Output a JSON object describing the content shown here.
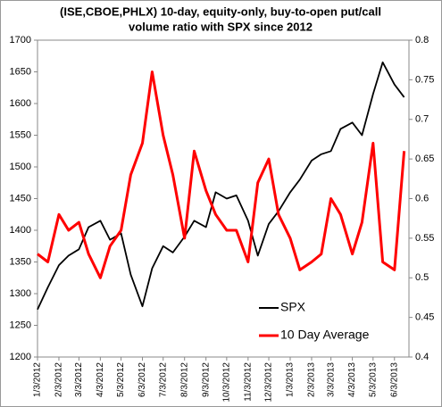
{
  "chart_data": {
    "type": "line",
    "title": [
      "(ISE,CBOE,PHLX) 10-day, equity-only, buy-to-open put/call",
      "volume ratio with SPX since 2012"
    ],
    "x": [
      "2012-01-03",
      "2012-01-18",
      "2012-02-03",
      "2012-02-17",
      "2012-03-03",
      "2012-03-17",
      "2012-04-03",
      "2012-04-17",
      "2012-05-03",
      "2012-05-17",
      "2012-06-03",
      "2012-06-17",
      "2012-07-03",
      "2012-07-17",
      "2012-08-03",
      "2012-08-17",
      "2012-09-03",
      "2012-09-17",
      "2012-10-03",
      "2012-10-17",
      "2012-11-03",
      "2012-11-17",
      "2012-12-03",
      "2012-12-17",
      "2013-01-03",
      "2013-01-17",
      "2013-02-03",
      "2013-02-17",
      "2013-03-03",
      "2013-03-17",
      "2013-04-03",
      "2013-04-17",
      "2013-05-03",
      "2013-05-17",
      "2013-06-03",
      "2013-06-17"
    ],
    "series": [
      {
        "name": "SPX",
        "color": "#000000",
        "axis": "y",
        "values": [
          1275,
          1310,
          1345,
          1360,
          1370,
          1405,
          1415,
          1385,
          1395,
          1330,
          1280,
          1340,
          1375,
          1365,
          1390,
          1415,
          1405,
          1460,
          1450,
          1455,
          1415,
          1360,
          1410,
          1430,
          1460,
          1480,
          1510,
          1520,
          1525,
          1560,
          1570,
          1550,
          1615,
          1665,
          1630,
          1610
        ]
      },
      {
        "name": "10 Day Average",
        "color": "#ff0000",
        "axis": "y2",
        "values": [
          0.53,
          0.52,
          0.58,
          0.56,
          0.57,
          0.53,
          0.5,
          0.54,
          0.56,
          0.63,
          0.67,
          0.76,
          0.68,
          0.63,
          0.55,
          0.66,
          0.61,
          0.58,
          0.56,
          0.56,
          0.52,
          0.62,
          0.65,
          0.58,
          0.55,
          0.51,
          0.52,
          0.53,
          0.6,
          0.58,
          0.53,
          0.57,
          0.67,
          0.52,
          0.51,
          0.66
        ]
      }
    ],
    "xlim": [
      "2012-01-03",
      "2013-06-24"
    ],
    "xticks": [
      {
        "value": "2012-01-03",
        "label": "1/3/2012"
      },
      {
        "value": "2012-02-03",
        "label": "2/3/2012"
      },
      {
        "value": "2012-03-03",
        "label": "3/3/2012"
      },
      {
        "value": "2012-04-03",
        "label": "4/3/2012"
      },
      {
        "value": "2012-05-03",
        "label": "5/3/2012"
      },
      {
        "value": "2012-06-03",
        "label": "6/3/2012"
      },
      {
        "value": "2012-07-03",
        "label": "7/3/2012"
      },
      {
        "value": "2012-08-03",
        "label": "8/3/2012"
      },
      {
        "value": "2012-09-03",
        "label": "9/3/2012"
      },
      {
        "value": "2012-10-03",
        "label": "10/3/2012"
      },
      {
        "value": "2012-11-03",
        "label": "11/3/2012"
      },
      {
        "value": "2012-12-03",
        "label": "12/3/2012"
      },
      {
        "value": "2013-01-03",
        "label": "1/3/2013"
      },
      {
        "value": "2013-02-03",
        "label": "2/3/2013"
      },
      {
        "value": "2013-03-03",
        "label": "3/3/2013"
      },
      {
        "value": "2013-04-03",
        "label": "4/3/2013"
      },
      {
        "value": "2013-05-03",
        "label": "5/3/2013"
      },
      {
        "value": "2013-06-03",
        "label": "6/3/2013"
      }
    ],
    "ylim": [
      1200,
      1700
    ],
    "yticks": [
      1200,
      1250,
      1300,
      1350,
      1400,
      1450,
      1500,
      1550,
      1600,
      1650,
      1700
    ],
    "y2lim": [
      0.4,
      0.8
    ],
    "y2ticks": [
      0.4,
      0.45,
      0.5,
      0.55,
      0.6,
      0.65,
      0.7,
      0.75,
      0.8
    ],
    "legend": "lower right",
    "grid": false
  }
}
